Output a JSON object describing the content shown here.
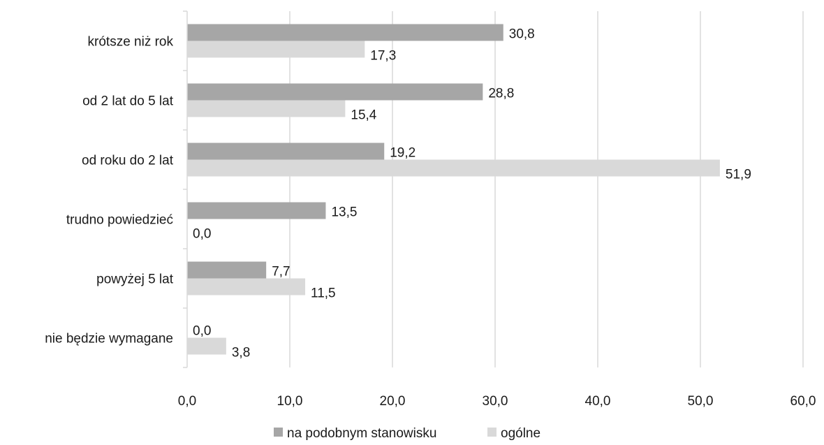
{
  "chart_data": {
    "type": "bar",
    "orientation": "horizontal",
    "title": "",
    "xlabel": "",
    "ylabel": "",
    "categories": [
      "krótsze niż rok",
      "od 2 lat do 5 lat",
      "od roku do 2 lat",
      "trudno powiedzieć",
      "powyżej 5 lat",
      "nie będzie wymagane"
    ],
    "series": [
      {
        "name": "na podobnym stanowisku",
        "color": "#a6a6a6",
        "values": [
          30.8,
          28.8,
          19.2,
          13.5,
          7.7,
          0.0
        ],
        "labels": [
          "30,8",
          "28,8",
          "19,2",
          "13,5",
          "7,7",
          "0,0"
        ]
      },
      {
        "name": "ogólne",
        "color": "#d9d9d9",
        "values": [
          17.3,
          15.4,
          51.9,
          0.0,
          11.5,
          3.8
        ],
        "labels": [
          "17,3",
          "15,4",
          "51,9",
          "0,0",
          "11,5",
          "3,8"
        ]
      }
    ],
    "xlim": [
      0,
      60
    ],
    "xticks": [
      0,
      10,
      20,
      30,
      40,
      50,
      60
    ],
    "xtick_labels": [
      "0,0",
      "10,0",
      "20,0",
      "30,0",
      "40,0",
      "50,0",
      "60,0"
    ],
    "grid": "vertical",
    "gridline_color": "#d9d9d9",
    "legend_position": "bottom"
  }
}
